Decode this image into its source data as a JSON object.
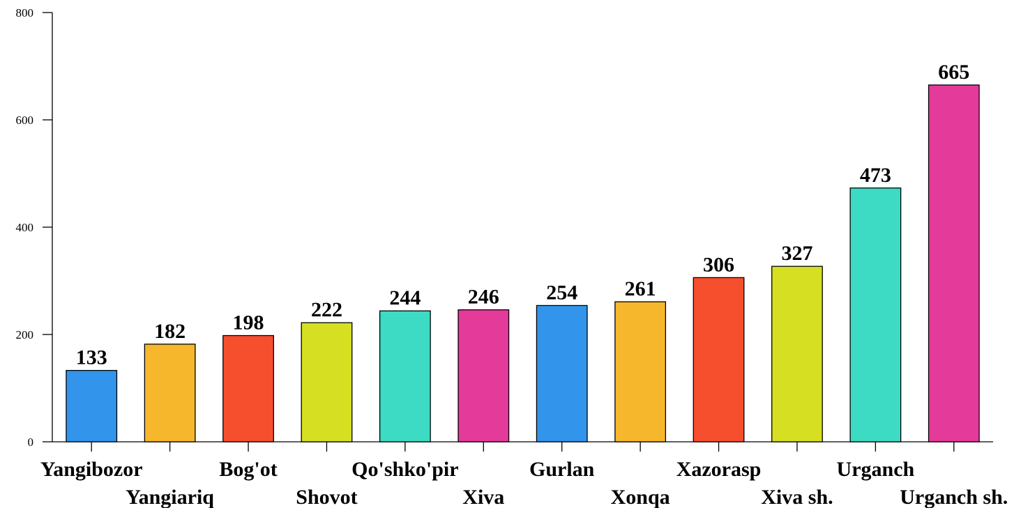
{
  "chart_data": {
    "type": "bar",
    "title": "",
    "xlabel": "",
    "ylabel": "",
    "ylim": [
      0,
      800
    ],
    "yticks": [
      0,
      200,
      400,
      600,
      800
    ],
    "grid": false,
    "legend": "none",
    "categories": [
      "Yangibozor",
      "Yangiariq",
      "Bog'ot",
      "Shovot",
      "Qo'shko'pir",
      "Xiva",
      "Gurlan",
      "Xonqa",
      "Xazorasp",
      "Xiva sh.",
      "Urganch",
      "Urganch sh."
    ],
    "values": [
      133,
      182,
      198,
      222,
      244,
      246,
      254,
      261,
      306,
      327,
      473,
      665
    ],
    "colors": [
      "#3294ea",
      "#f6b72c",
      "#f64f2e",
      "#d6df22",
      "#3ddbc4",
      "#e43a9a",
      "#3294ea",
      "#f6b72c",
      "#f64f2e",
      "#d6df22",
      "#3ddbc4",
      "#e43a9a"
    ]
  }
}
